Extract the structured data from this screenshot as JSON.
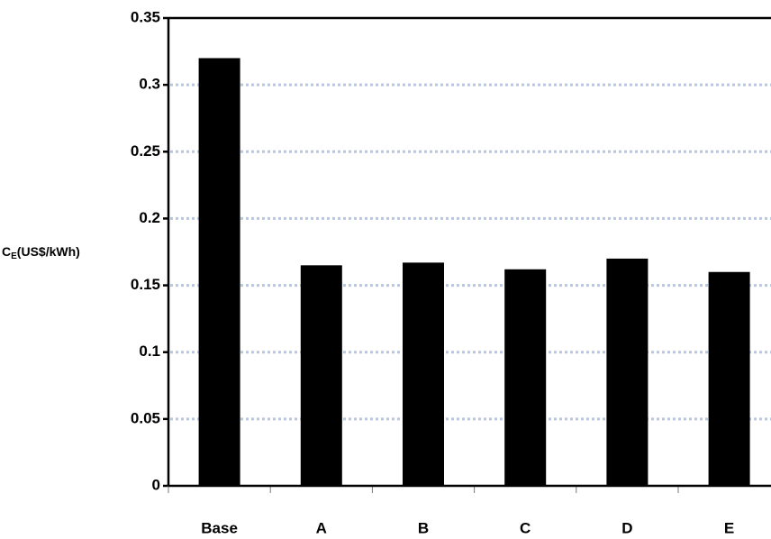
{
  "chart_data": {
    "type": "bar",
    "y_label": [
      "C",
      "E",
      "(US$/kWh)"
    ],
    "categories": [
      "Base",
      "A",
      "B",
      "C",
      "D",
      "E"
    ],
    "values": [
      0.32,
      0.165,
      0.167,
      0.162,
      0.17,
      0.16
    ],
    "color": "#000000",
    "ylim": [
      0,
      0.35
    ],
    "yticks": [
      0,
      0.05,
      0.1,
      0.15,
      0.2,
      0.25,
      0.3,
      0.35
    ],
    "grid": true
  }
}
